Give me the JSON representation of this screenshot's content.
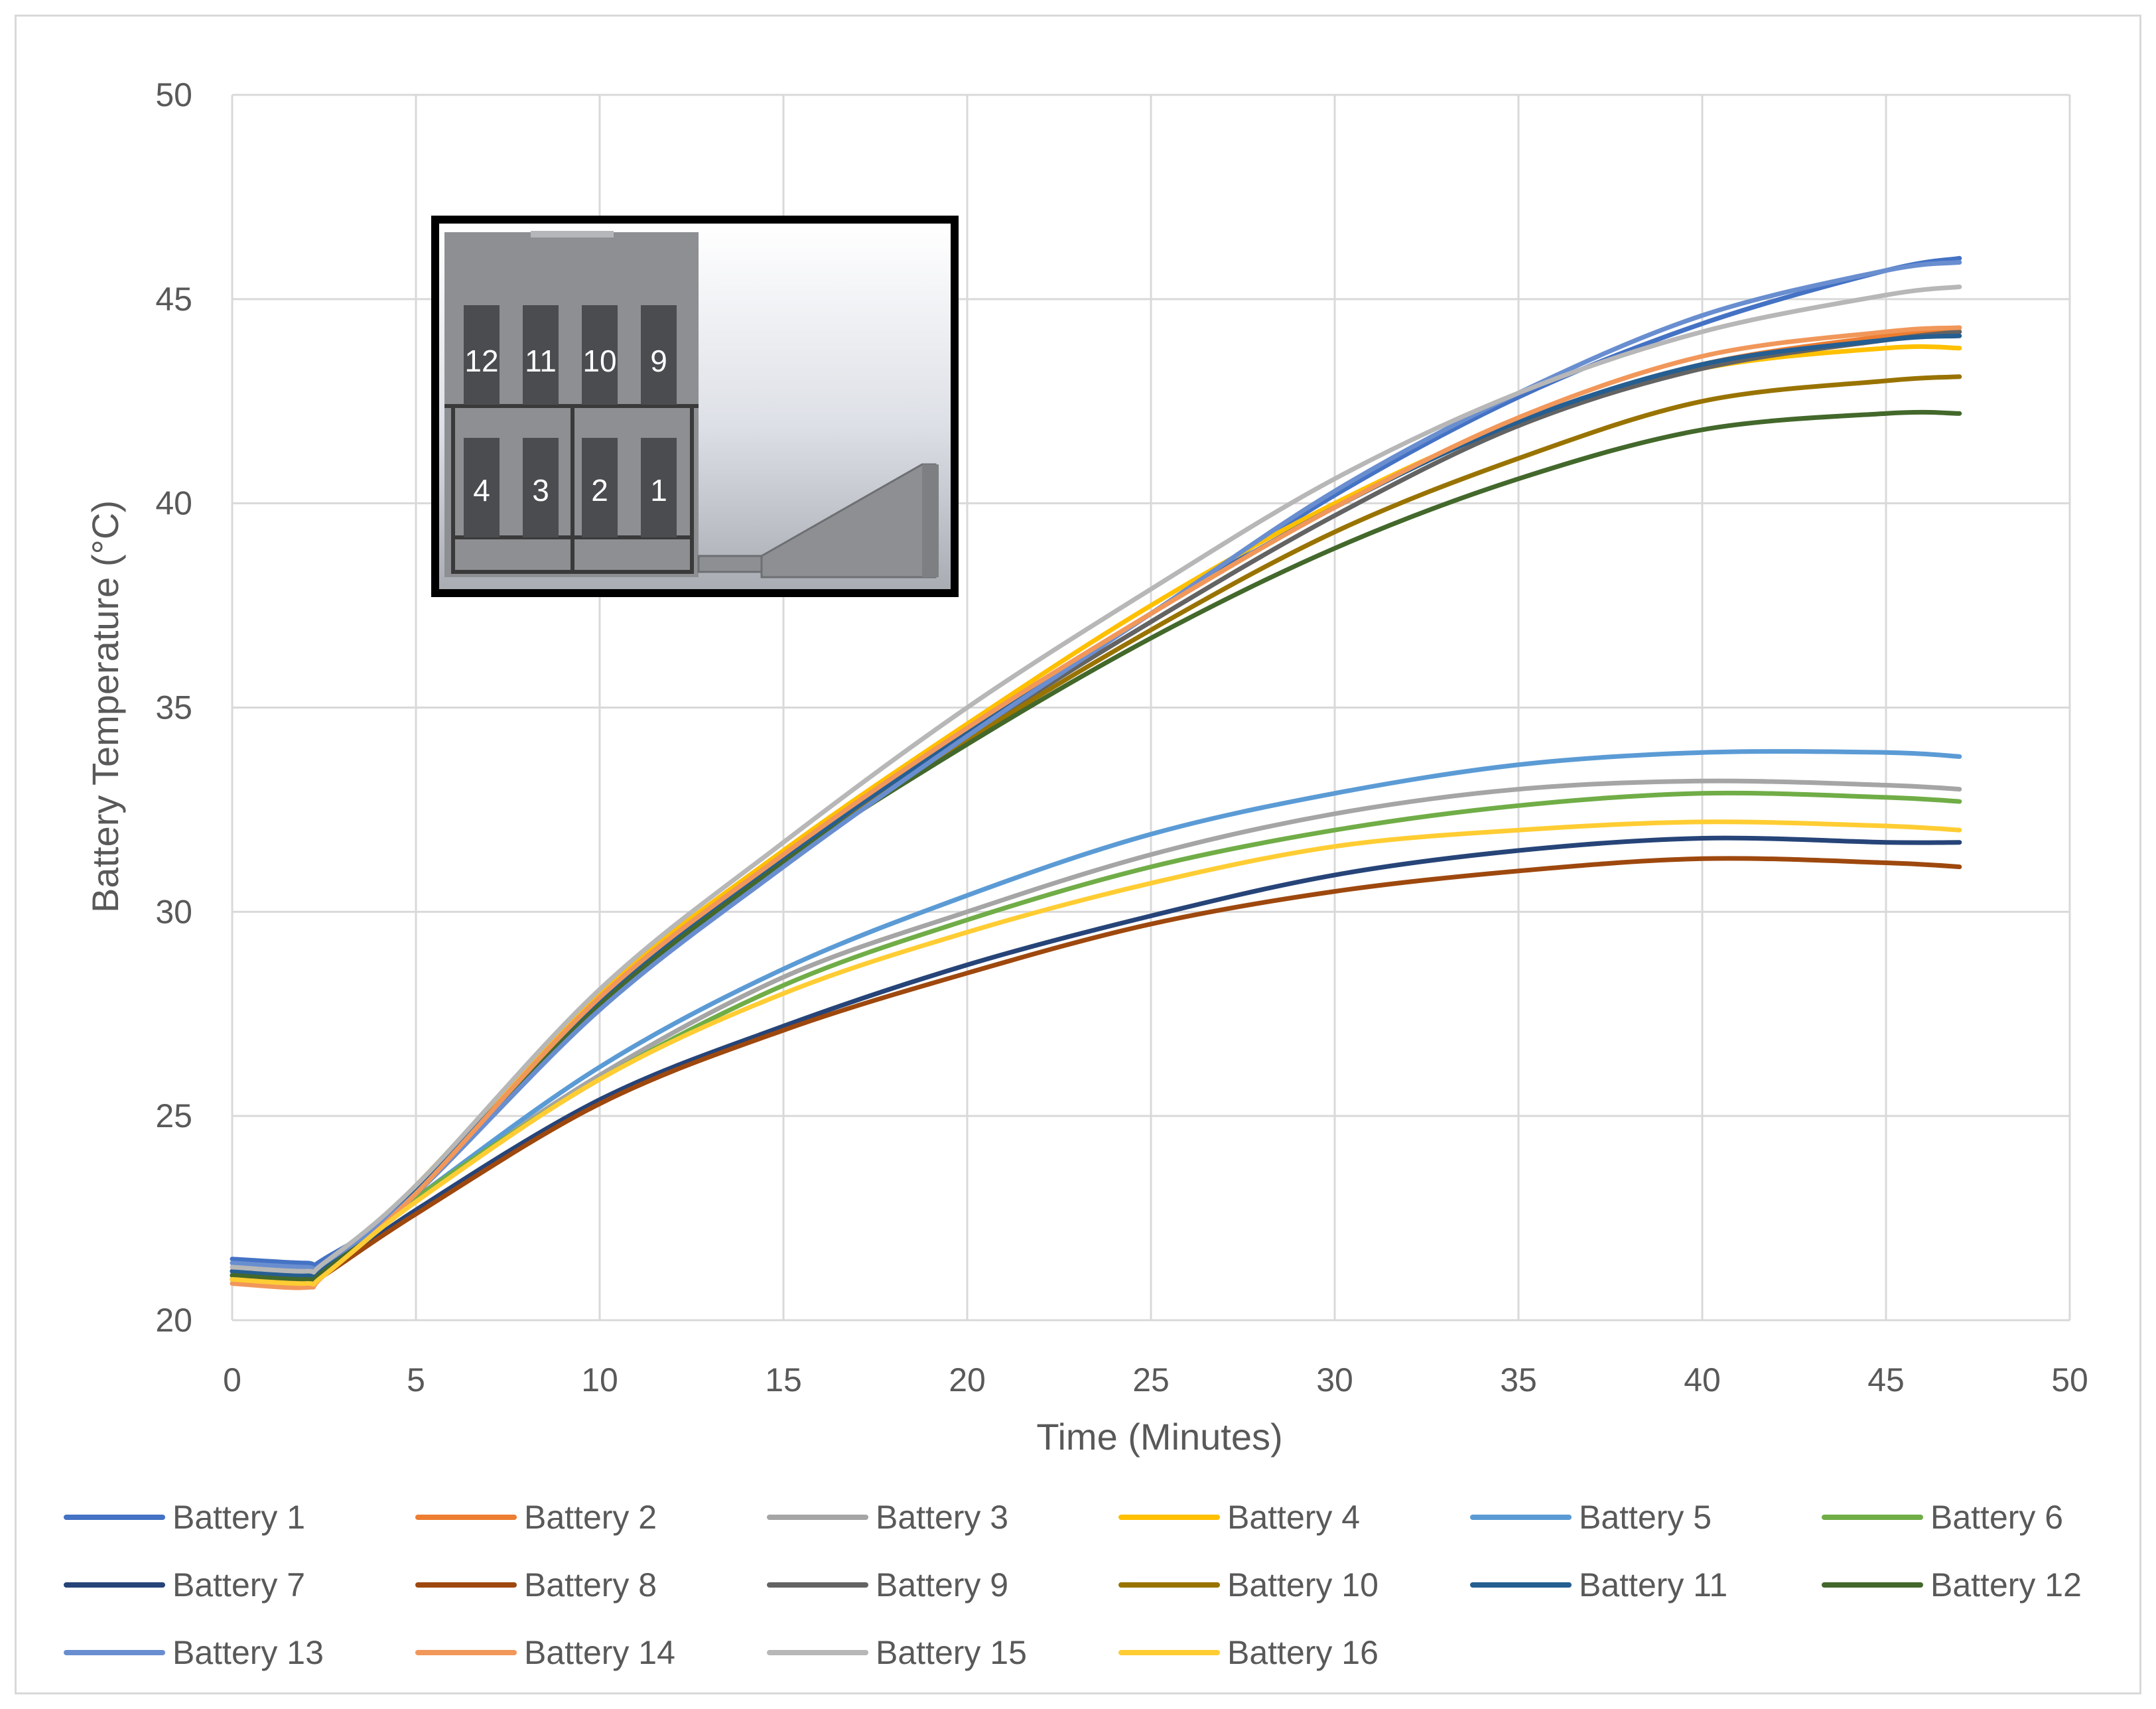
{
  "chart_data": {
    "type": "line",
    "title": "",
    "xlabel": "Time (Minutes)",
    "ylabel": "Battery Temperature (°C)",
    "xlim": [
      0,
      50
    ],
    "ylim": [
      20,
      50
    ],
    "x_ticks": [
      "0",
      "5",
      "10",
      "15",
      "20",
      "25",
      "30",
      "35",
      "40",
      "45",
      "50"
    ],
    "y_ticks": [
      "20",
      "25",
      "30",
      "35",
      "40",
      "45",
      "50"
    ],
    "grid": true,
    "legend_position": "bottom",
    "x": [
      0,
      2,
      2.5,
      5,
      10,
      15,
      20,
      25,
      30,
      35,
      40,
      45,
      47
    ],
    "series": [
      {
        "name": "Battery 1",
        "color": "#4472C4",
        "values": [
          21.5,
          21.4,
          21.5,
          23.1,
          27.8,
          31.3,
          34.4,
          37.3,
          40.2,
          42.6,
          44.4,
          45.7,
          46.0
        ]
      },
      {
        "name": "Battery 2",
        "color": "#ED7D31",
        "values": [
          21.0,
          20.9,
          21.2,
          23.2,
          27.9,
          31.4,
          34.5,
          37.3,
          39.9,
          42.0,
          43.4,
          44.1,
          44.3
        ]
      },
      {
        "name": "Battery 3",
        "color": "#A5A5A5",
        "values": [
          21.2,
          21.1,
          21.3,
          23.0,
          26.0,
          28.4,
          30.0,
          31.4,
          32.4,
          33.0,
          33.2,
          33.1,
          33.0
        ]
      },
      {
        "name": "Battery 4",
        "color": "#FFC000",
        "values": [
          21.1,
          21.0,
          21.2,
          23.3,
          28.0,
          31.5,
          34.6,
          37.5,
          40.0,
          42.0,
          43.3,
          43.8,
          43.8
        ]
      },
      {
        "name": "Battery 5",
        "color": "#5B9BD5",
        "values": [
          21.2,
          21.1,
          21.3,
          23.0,
          26.2,
          28.6,
          30.4,
          31.9,
          32.9,
          33.6,
          33.9,
          33.9,
          33.8
        ]
      },
      {
        "name": "Battery 6",
        "color": "#70AD47",
        "values": [
          21.1,
          21.0,
          21.2,
          23.0,
          25.9,
          28.2,
          29.8,
          31.1,
          32.0,
          32.6,
          32.9,
          32.8,
          32.7
        ]
      },
      {
        "name": "Battery 7",
        "color": "#264478",
        "values": [
          21.0,
          20.9,
          21.1,
          22.7,
          25.4,
          27.2,
          28.7,
          29.9,
          30.9,
          31.5,
          31.8,
          31.7,
          31.7
        ]
      },
      {
        "name": "Battery 8",
        "color": "#9E480E",
        "values": [
          21.0,
          20.9,
          21.1,
          22.6,
          25.3,
          27.1,
          28.5,
          29.7,
          30.5,
          31.0,
          31.3,
          31.2,
          31.1
        ]
      },
      {
        "name": "Battery 9",
        "color": "#636363",
        "values": [
          21.2,
          21.1,
          21.3,
          23.2,
          27.8,
          31.3,
          34.3,
          37.1,
          39.7,
          41.9,
          43.3,
          44.0,
          44.2
        ]
      },
      {
        "name": "Battery 10",
        "color": "#997300",
        "values": [
          21.1,
          21.0,
          21.2,
          23.1,
          27.7,
          31.2,
          34.2,
          36.9,
          39.3,
          41.1,
          42.5,
          43.0,
          43.1
        ]
      },
      {
        "name": "Battery 11",
        "color": "#255E91",
        "values": [
          21.2,
          21.1,
          21.3,
          23.2,
          27.8,
          31.3,
          34.4,
          37.3,
          39.9,
          42.0,
          43.4,
          44.0,
          44.1
        ]
      },
      {
        "name": "Battery 12",
        "color": "#43682B",
        "values": [
          21.1,
          21.0,
          21.2,
          23.1,
          27.7,
          31.2,
          34.1,
          36.7,
          38.9,
          40.6,
          41.8,
          42.2,
          42.2
        ]
      },
      {
        "name": "Battery 13",
        "color": "#698ED0",
        "values": [
          21.4,
          21.3,
          21.4,
          23.1,
          27.6,
          31.1,
          34.3,
          37.3,
          40.3,
          42.7,
          44.6,
          45.7,
          45.9
        ]
      },
      {
        "name": "Battery 14",
        "color": "#F1975A",
        "values": [
          20.9,
          20.8,
          21.1,
          23.1,
          27.9,
          31.4,
          34.5,
          37.3,
          39.9,
          42.1,
          43.6,
          44.2,
          44.3
        ]
      },
      {
        "name": "Battery 15",
        "color": "#B7B7B7",
        "values": [
          21.3,
          21.2,
          21.4,
          23.3,
          28.1,
          31.7,
          35.0,
          37.9,
          40.6,
          42.7,
          44.2,
          45.1,
          45.3
        ]
      },
      {
        "name": "Battery 16",
        "color": "#FFCD33",
        "values": [
          21.0,
          20.9,
          21.1,
          22.9,
          25.9,
          28.0,
          29.5,
          30.7,
          31.6,
          32.0,
          32.2,
          32.1,
          32.0
        ]
      }
    ]
  },
  "inset": {
    "top_row_labels": [
      "12",
      "11",
      "10",
      "9"
    ],
    "bottom_row_labels": [
      "4",
      "3",
      "2",
      "1"
    ]
  }
}
